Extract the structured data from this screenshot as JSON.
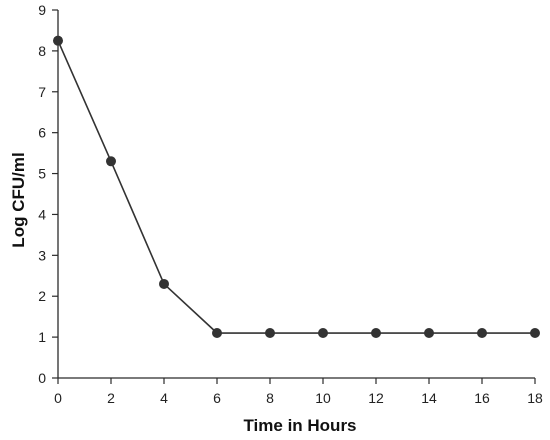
{
  "chart_data": {
    "type": "line",
    "title": "",
    "xlabel": "Time in Hours",
    "ylabel": "Log CFU/ml",
    "xlim": [
      0,
      18
    ],
    "ylim": [
      0,
      9
    ],
    "xticks": [
      0,
      2,
      4,
      6,
      8,
      10,
      12,
      14,
      16,
      18
    ],
    "yticks": [
      0,
      1,
      2,
      3,
      4,
      5,
      6,
      7,
      8,
      9
    ],
    "grid": false,
    "legend": "none",
    "series": [
      {
        "color": "#333333",
        "marker": "circle",
        "x": [
          0,
          2,
          4,
          6,
          8,
          10,
          12,
          14,
          16,
          18
        ],
        "y": [
          8.25,
          5.3,
          2.3,
          1.1,
          1.1,
          1.1,
          1.1,
          1.1,
          1.1,
          1.1
        ]
      }
    ]
  }
}
